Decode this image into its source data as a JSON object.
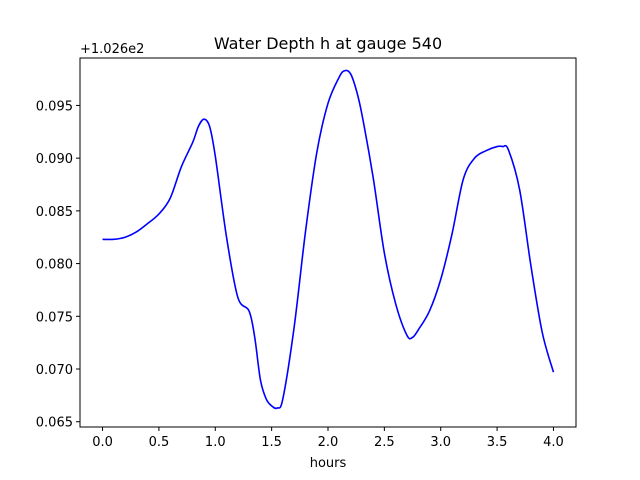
{
  "chart_data": {
    "type": "line",
    "title": "Water Depth h at gauge 540",
    "xlabel": "hours",
    "ylabel": "",
    "y_offset_label": "+1.026e2",
    "xlim": [
      -0.2,
      4.2
    ],
    "ylim": [
      0.0645,
      0.0995
    ],
    "x_ticks": [
      0.0,
      0.5,
      1.0,
      1.5,
      2.0,
      2.5,
      3.0,
      3.5,
      4.0
    ],
    "x_tick_labels": [
      "0.0",
      "0.5",
      "1.0",
      "1.5",
      "2.0",
      "2.5",
      "3.0",
      "3.5",
      "4.0"
    ],
    "y_ticks": [
      0.065,
      0.07,
      0.075,
      0.08,
      0.085,
      0.09,
      0.095
    ],
    "y_tick_labels": [
      "0.065",
      "0.070",
      "0.075",
      "0.080",
      "0.085",
      "0.090",
      "0.095"
    ],
    "grid": false,
    "series": [
      {
        "color": "#0000ff",
        "x": [
          0.0,
          0.1,
          0.2,
          0.3,
          0.4,
          0.5,
          0.6,
          0.7,
          0.8,
          0.85,
          0.9,
          0.95,
          1.0,
          1.1,
          1.2,
          1.3,
          1.35,
          1.4,
          1.45,
          1.5,
          1.55,
          1.6,
          1.7,
          1.8,
          1.9,
          2.0,
          2.1,
          2.15,
          2.2,
          2.25,
          2.3,
          2.4,
          2.5,
          2.6,
          2.7,
          2.75,
          2.8,
          2.9,
          3.0,
          3.1,
          3.2,
          3.3,
          3.4,
          3.5,
          3.55,
          3.6,
          3.7,
          3.8,
          3.9,
          4.0
        ],
        "y": [
          0.0823,
          0.0823,
          0.0825,
          0.083,
          0.0838,
          0.0847,
          0.0862,
          0.0892,
          0.0915,
          0.093,
          0.0937,
          0.093,
          0.0902,
          0.0825,
          0.0768,
          0.0755,
          0.073,
          0.069,
          0.0672,
          0.0665,
          0.0663,
          0.0672,
          0.074,
          0.083,
          0.0905,
          0.0952,
          0.0977,
          0.0983,
          0.098,
          0.0965,
          0.0942,
          0.0882,
          0.081,
          0.0762,
          0.0732,
          0.073,
          0.0737,
          0.0755,
          0.0785,
          0.0828,
          0.088,
          0.09,
          0.0907,
          0.0911,
          0.0911,
          0.0908,
          0.087,
          0.0798,
          0.0735,
          0.0697
        ]
      }
    ]
  }
}
